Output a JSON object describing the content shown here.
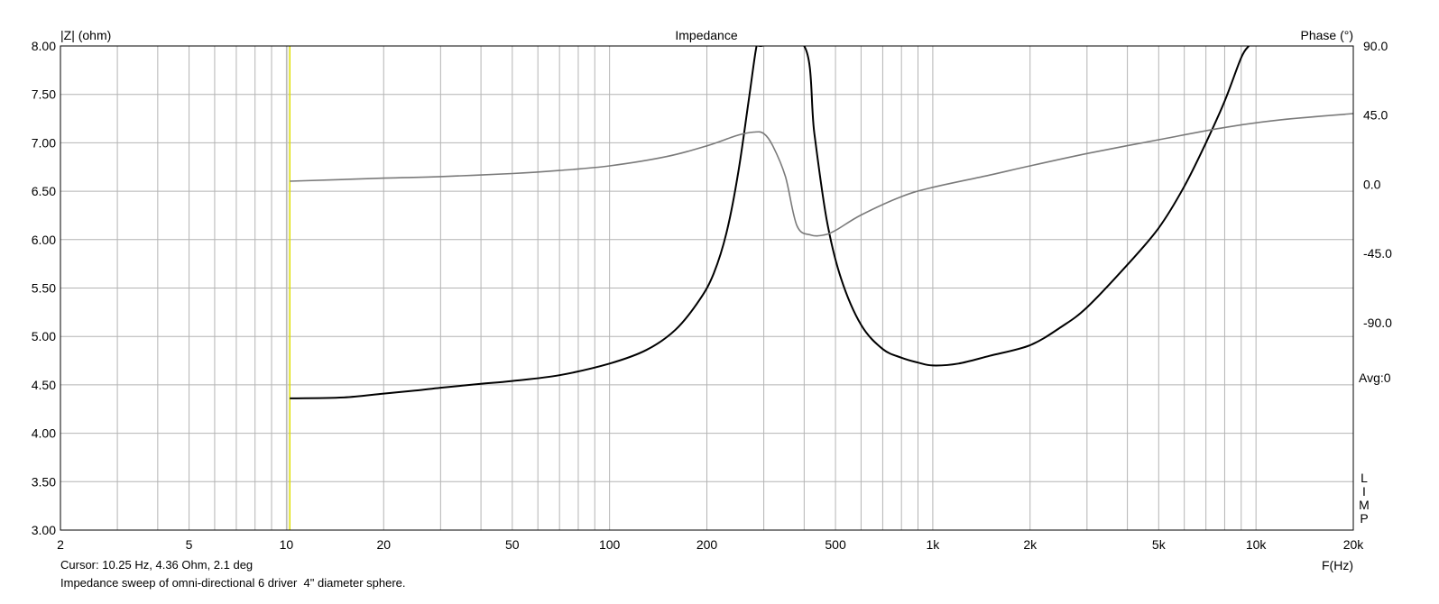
{
  "chart_data": {
    "type": "line",
    "title": "Impedance",
    "ylabel_left": "|Z| (ohm)",
    "ylabel_right": "Phase (°)",
    "xlabel": "F(Hz)",
    "x_scale": "log",
    "xlim": [
      2,
      20000
    ],
    "ylim_left": [
      3.0,
      8.0
    ],
    "ylim_right": [
      -225,
      90
    ],
    "x_ticks": [
      {
        "value": 2,
        "label": "2"
      },
      {
        "value": 5,
        "label": "5"
      },
      {
        "value": 10,
        "label": "10"
      },
      {
        "value": 20,
        "label": "20"
      },
      {
        "value": 50,
        "label": "50"
      },
      {
        "value": 100,
        "label": "100"
      },
      {
        "value": 200,
        "label": "200"
      },
      {
        "value": 500,
        "label": "500"
      },
      {
        "value": 1000,
        "label": "1k"
      },
      {
        "value": 2000,
        "label": "2k"
      },
      {
        "value": 5000,
        "label": "5k"
      },
      {
        "value": 10000,
        "label": "10k"
      },
      {
        "value": 20000,
        "label": "20k"
      }
    ],
    "y_ticks_left": [
      {
        "value": 8.0,
        "label": "8.00"
      },
      {
        "value": 7.5,
        "label": "7.50"
      },
      {
        "value": 7.0,
        "label": "7.00"
      },
      {
        "value": 6.5,
        "label": "6.50"
      },
      {
        "value": 6.0,
        "label": "6.00"
      },
      {
        "value": 5.5,
        "label": "5.50"
      },
      {
        "value": 5.0,
        "label": "5.00"
      },
      {
        "value": 4.5,
        "label": "4.50"
      },
      {
        "value": 4.0,
        "label": "4.00"
      },
      {
        "value": 3.5,
        "label": "3.50"
      },
      {
        "value": 3.0,
        "label": "3.00"
      }
    ],
    "y_ticks_right": [
      {
        "value": 90,
        "label": "90.0"
      },
      {
        "value": 45,
        "label": "45.0"
      },
      {
        "value": 0,
        "label": "0.0"
      },
      {
        "value": -45,
        "label": "-45.0"
      },
      {
        "value": -90,
        "label": "-90.0"
      }
    ],
    "avg_label": "Avg:0",
    "side_letters": [
      "L",
      "I",
      "M",
      "P"
    ],
    "cursor_frequency": 10.25,
    "grid": true,
    "colors": {
      "impedance": "#000000",
      "phase": "#7a7a7a",
      "cursor": "#e0e000",
      "grid": "#b4b4b4",
      "frame": "#000000"
    },
    "series": [
      {
        "name": "Impedance",
        "axis": "left",
        "x": [
          10.25,
          15,
          20,
          25,
          30,
          40,
          50,
          70,
          100,
          130,
          160,
          190,
          210,
          230,
          250,
          270,
          285,
          293,
          400,
          430,
          470,
          520,
          600,
          700,
          800,
          900,
          1000,
          1200,
          1500,
          2000,
          2500,
          3000,
          4000,
          5000,
          6000,
          7000,
          8000,
          9000,
          9500
        ],
        "values": [
          4.36,
          4.37,
          4.41,
          4.44,
          4.47,
          4.51,
          4.54,
          4.6,
          4.72,
          4.86,
          5.07,
          5.38,
          5.65,
          6.07,
          6.69,
          7.46,
          8.0,
          8.0,
          8.0,
          7.1,
          6.2,
          5.6,
          5.12,
          4.87,
          4.78,
          4.73,
          4.7,
          4.72,
          4.8,
          4.91,
          5.1,
          5.3,
          5.74,
          6.12,
          6.55,
          7.0,
          7.43,
          7.88,
          8.0
        ]
      },
      {
        "name": "Phase",
        "axis": "right",
        "x": [
          10.25,
          20,
          30,
          50,
          70,
          100,
          150,
          200,
          250,
          280,
          300,
          320,
          350,
          380,
          420,
          460,
          500,
          600,
          800,
          1000,
          1500,
          2000,
          3000,
          5000,
          8000,
          12000,
          20000
        ],
        "values": [
          2.0,
          4.0,
          5.0,
          7.0,
          9.0,
          12.0,
          18.0,
          25.0,
          32.0,
          34.0,
          33.0,
          25.0,
          5.0,
          -27.0,
          -33.0,
          -33.0,
          -30.0,
          -20.0,
          -8.0,
          -2.0,
          6.0,
          12.0,
          20.0,
          29.0,
          37.0,
          42.0,
          46.0
        ]
      }
    ]
  },
  "footer": {
    "cursor_text": "Cursor: 10.25 Hz, 4.36 Ohm, 2.1 deg",
    "description": "Impedance sweep of omni-directional 6 driver  4\" diameter sphere."
  }
}
